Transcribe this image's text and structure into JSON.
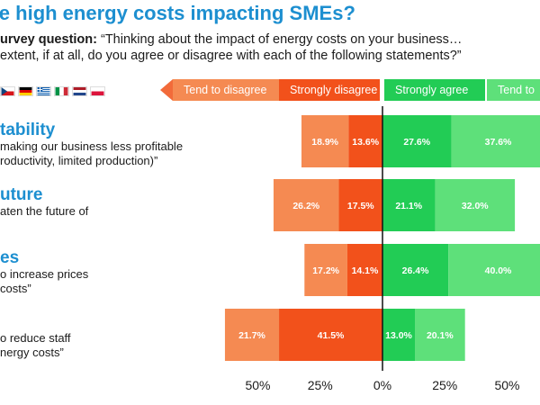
{
  "title": "are high energy costs impacting SMEs?",
  "question_label": "urvey question:",
  "question_line1": "“Thinking about the impact of energy costs on your business…",
  "question_line2": "extent, if at all, do you agree or disagree with each of the following statements?”",
  "legend": [
    {
      "label": "Tend to disagree",
      "color": "#f58a52"
    },
    {
      "label": "Strongly disagree",
      "color": "#f2511b"
    },
    {
      "label": "Strongly agree",
      "color": "#22cc55"
    },
    {
      "label": "Tend to",
      "color": "#5ee07a"
    }
  ],
  "statements": [
    {
      "heading": "tability",
      "lines": [
        "making our business less profitable",
        "roductivity, limited production)”"
      ]
    },
    {
      "heading": "uture",
      "lines": [
        "aten the future of"
      ]
    },
    {
      "heading": "es",
      "lines": [
        "o increase prices",
        "costs”"
      ]
    },
    {
      "heading": "",
      "lines": [
        "o reduce staff",
        "nergy costs”"
      ]
    }
  ],
  "chart_data": {
    "type": "bar",
    "orientation": "horizontal-diverging",
    "categories": [
      "tability",
      "uture",
      "es",
      "o reduce staff"
    ],
    "series": [
      {
        "name": "Tend to disagree",
        "values": [
          18.9,
          26.2,
          17.2,
          21.7
        ]
      },
      {
        "name": "Strongly disagree",
        "values": [
          13.6,
          17.5,
          14.1,
          41.5
        ]
      },
      {
        "name": "Strongly agree",
        "values": [
          27.6,
          21.1,
          26.4,
          13.0
        ]
      },
      {
        "name": "Tend to",
        "values": [
          37.6,
          32.0,
          40.0,
          20.1
        ]
      }
    ],
    "xticks": [
      "50%",
      "25%",
      "0%",
      "25%",
      "50%"
    ],
    "xlim": [
      -50,
      50
    ],
    "colors": {
      "tend_disagree": "#f58a52",
      "strongly_disagree": "#f2511b",
      "strongly_agree": "#22cc55",
      "tend_agree": "#5ee07a"
    }
  }
}
